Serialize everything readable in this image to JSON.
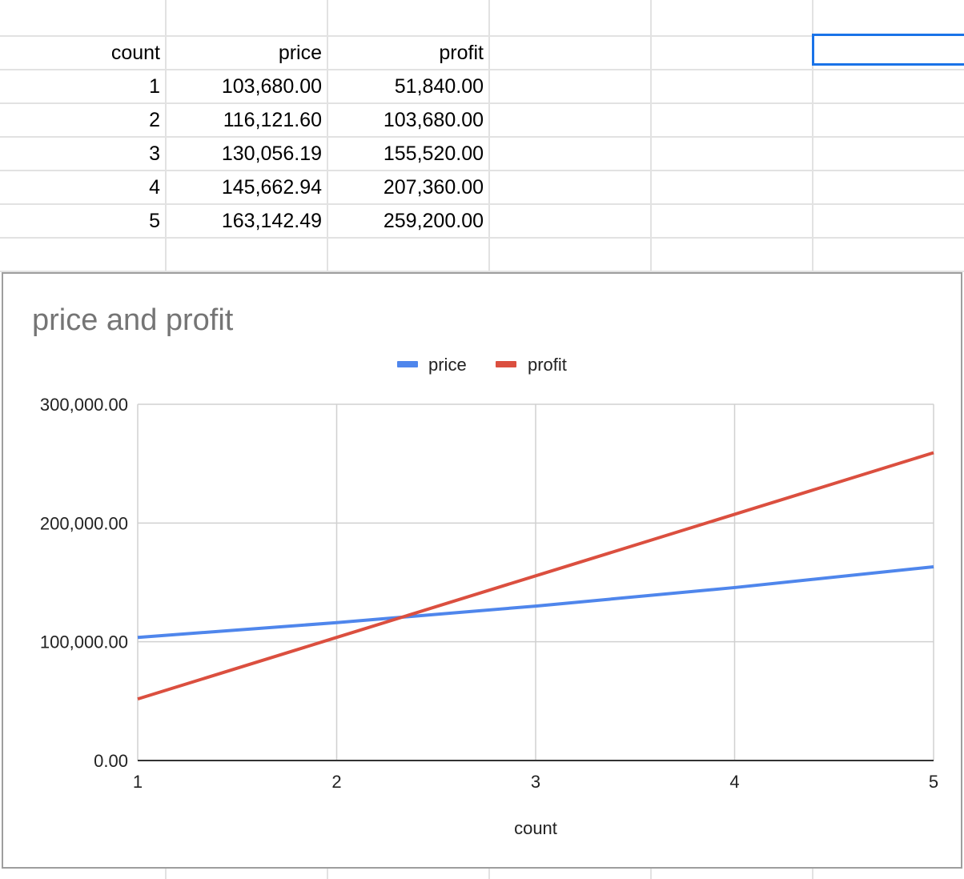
{
  "sheet": {
    "headers": [
      "count",
      "price",
      "profit"
    ],
    "rows": [
      [
        "1",
        "103,680.00",
        "51,840.00"
      ],
      [
        "2",
        "116,121.60",
        "103,680.00"
      ],
      [
        "3",
        "130,056.19",
        "155,520.00"
      ],
      [
        "4",
        "145,662.94",
        "207,360.00"
      ],
      [
        "5",
        "163,142.49",
        "259,200.00"
      ]
    ]
  },
  "chart_data": {
    "type": "line",
    "title": "price and profit",
    "xlabel": "count",
    "ylabel": "",
    "x": [
      1,
      2,
      3,
      4,
      5
    ],
    "xlim": [
      1,
      5
    ],
    "ylim": [
      0,
      300000
    ],
    "y_ticks": [
      "0.00",
      "100,000.00",
      "200,000.00",
      "300,000.00"
    ],
    "x_ticks": [
      "1",
      "2",
      "3",
      "4",
      "5"
    ],
    "grid": true,
    "legend_position": "top",
    "series": [
      {
        "name": "price",
        "color": "#4f86ec",
        "values": [
          103680.0,
          116121.6,
          130056.19,
          145662.94,
          163142.49
        ]
      },
      {
        "name": "profit",
        "color": "#db4f3f",
        "values": [
          51840.0,
          103680.0,
          155520.0,
          207360.0,
          259200.0
        ]
      }
    ]
  }
}
